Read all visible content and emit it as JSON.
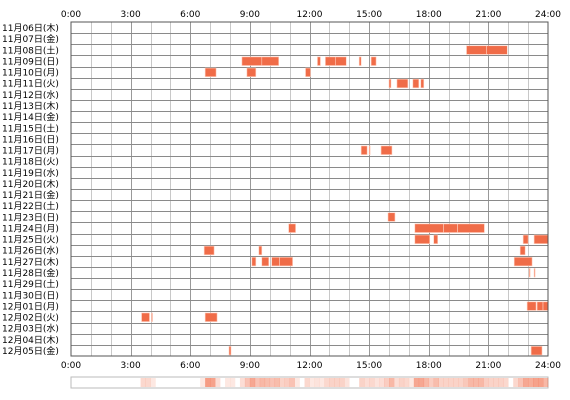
{
  "chart_data": {
    "type": "heatmap",
    "title": "",
    "xlabel": "",
    "ylabel": "",
    "x_unit": "hour of day",
    "xlim": [
      0,
      24
    ],
    "x_ticks": [
      "0:00",
      "3:00",
      "6:00",
      "9:00",
      "12:00",
      "15:00",
      "18:00",
      "21:00",
      "24:00"
    ],
    "x_tick_hours": [
      0,
      3,
      6,
      9,
      12,
      15,
      18,
      21,
      24
    ],
    "minor_gridline_step_hours": 1,
    "grid": true,
    "bar_color": "#f06c48",
    "rows": [
      {
        "label": "11月06日(木)",
        "blocks": []
      },
      {
        "label": "11月07日(金)",
        "blocks": []
      },
      {
        "label": "11月08日(土)",
        "blocks": [
          [
            19.9,
            20.9
          ],
          [
            20.9,
            21.95
          ]
        ]
      },
      {
        "label": "11月09日(日)",
        "blocks": [
          [
            8.6,
            9.6
          ],
          [
            9.6,
            10.45
          ],
          [
            12.4,
            12.55
          ],
          [
            12.8,
            13.3
          ],
          [
            13.3,
            13.85
          ],
          [
            14.5,
            14.6
          ],
          [
            15.1,
            15.35
          ]
        ]
      },
      {
        "label": "11月10日(月)",
        "blocks": [
          [
            6.75,
            7.3
          ],
          [
            8.85,
            9.3
          ],
          [
            11.8,
            12.05
          ]
        ]
      },
      {
        "label": "11月11日(火)",
        "blocks": [
          [
            16.0,
            16.1
          ],
          [
            16.4,
            16.95
          ],
          [
            17.2,
            17.5
          ],
          [
            17.6,
            17.75
          ]
        ]
      },
      {
        "label": "11月12日(水)",
        "blocks": []
      },
      {
        "label": "11月13日(木)",
        "blocks": []
      },
      {
        "label": "11月14日(金)",
        "blocks": []
      },
      {
        "label": "11月15日(土)",
        "blocks": []
      },
      {
        "label": "11月16日(日)",
        "blocks": []
      },
      {
        "label": "11月17日(月)",
        "blocks": [
          [
            14.6,
            14.9
          ],
          [
            15.0,
            15.05
          ],
          [
            15.6,
            16.15
          ]
        ]
      },
      {
        "label": "11月18日(火)",
        "blocks": []
      },
      {
        "label": "11月19日(水)",
        "blocks": []
      },
      {
        "label": "11月20日(木)",
        "blocks": []
      },
      {
        "label": "11月21日(金)",
        "blocks": []
      },
      {
        "label": "11月22日(土)",
        "blocks": []
      },
      {
        "label": "11月23日(日)",
        "blocks": [
          [
            15.95,
            16.3
          ]
        ]
      },
      {
        "label": "11月24日(月)",
        "blocks": [
          [
            10.95,
            11.3
          ],
          [
            17.3,
            18.75
          ],
          [
            18.75,
            19.45
          ],
          [
            19.45,
            20.8
          ]
        ]
      },
      {
        "label": "11月25日(火)",
        "blocks": [
          [
            17.3,
            18.05
          ],
          [
            18.25,
            18.45
          ],
          [
            22.75,
            23.0
          ],
          [
            23.3,
            24.0
          ]
        ]
      },
      {
        "label": "11月26日(水)",
        "blocks": [
          [
            6.7,
            7.2
          ],
          [
            9.45,
            9.6
          ],
          [
            22.6,
            22.85
          ]
        ]
      },
      {
        "label": "11月27日(木)",
        "blocks": [
          [
            9.1,
            9.3
          ],
          [
            9.6,
            9.95
          ],
          [
            10.1,
            10.5
          ],
          [
            10.5,
            11.15
          ],
          [
            22.3,
            23.2
          ]
        ]
      },
      {
        "label": "11月28日(金)",
        "blocks": [
          [
            23.05,
            23.1
          ],
          [
            23.3,
            23.35
          ]
        ]
      },
      {
        "label": "11月29日(土)",
        "blocks": []
      },
      {
        "label": "11月30日(日)",
        "blocks": []
      },
      {
        "label": "12月01日(月)",
        "blocks": [
          [
            22.95,
            23.4
          ],
          [
            23.45,
            23.75
          ],
          [
            23.75,
            24.0
          ]
        ]
      },
      {
        "label": "12月02日(火)",
        "blocks": [
          [
            3.55,
            3.95
          ],
          [
            4.05,
            4.1
          ],
          [
            6.75,
            7.35
          ]
        ]
      },
      {
        "label": "12月03日(水)",
        "blocks": []
      },
      {
        "label": "12月04日(木)",
        "blocks": []
      },
      {
        "label": "12月05日(金)",
        "blocks": [
          [
            7.95,
            8.05
          ],
          [
            23.15,
            23.7
          ]
        ]
      }
    ],
    "summary_strip_color": "#f06c48"
  }
}
